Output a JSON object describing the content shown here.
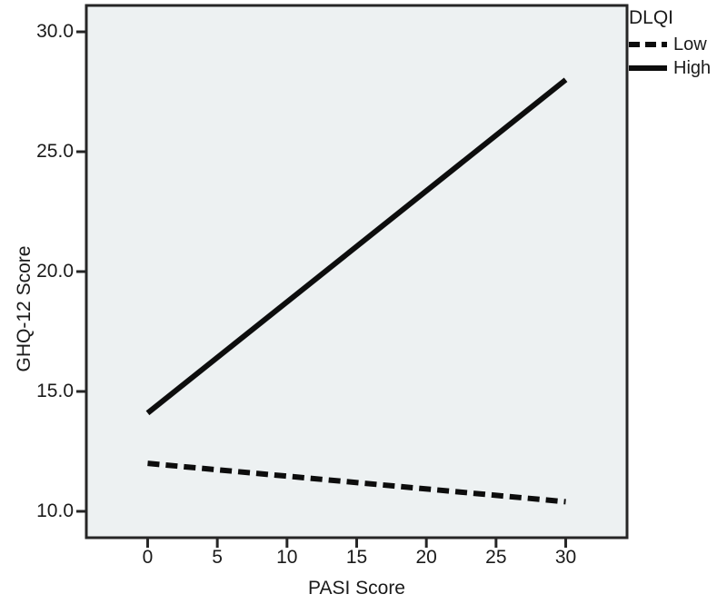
{
  "chart_data": {
    "type": "line",
    "title": "",
    "xlabel": "PASI Score",
    "ylabel": "GHQ-12 Score",
    "x_ticks": [
      {
        "value": 0,
        "label": "0"
      },
      {
        "value": 5,
        "label": "5"
      },
      {
        "value": 10,
        "label": "10"
      },
      {
        "value": 15,
        "label": "15"
      },
      {
        "value": 20,
        "label": "20"
      },
      {
        "value": 25,
        "label": "25"
      },
      {
        "value": 30,
        "label": "30"
      }
    ],
    "y_ticks": [
      {
        "value": 30,
        "label": "30.0"
      },
      {
        "value": 25,
        "label": "25.0"
      },
      {
        "value": 20,
        "label": "20.0"
      },
      {
        "value": 15,
        "label": "15.0"
      },
      {
        "value": 10,
        "label": "10.0"
      }
    ],
    "x_range": [
      -4.4,
      34.4
    ],
    "y_range": [
      8.9,
      31.1
    ],
    "grid": false,
    "legend": {
      "title": "DLQI",
      "position": "top-right-outside"
    },
    "series": [
      {
        "name": "Low",
        "style": "dashed",
        "color": "#0d0d0d",
        "x": [
          0,
          30
        ],
        "y": [
          12.0,
          10.4
        ]
      },
      {
        "name": "High",
        "style": "solid",
        "color": "#0d0d0d",
        "x": [
          0,
          30
        ],
        "y": [
          14.1,
          28.0
        ]
      }
    ],
    "plot_background": "#edf1f2",
    "frame_color": "#262626",
    "line_width": 6
  }
}
